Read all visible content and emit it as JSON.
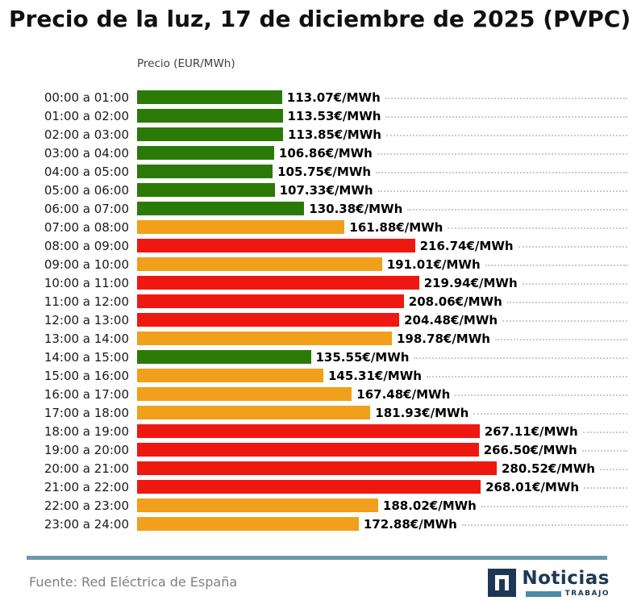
{
  "title": "Precio de la luz, 17 de diciembre de 2025 (PVPC)",
  "axis_title": "Precio (EUR/MWh)",
  "source": "Fuente: Red Eléctrica de España",
  "logo": {
    "name": "Noticias",
    "sub": "TRABAJO"
  },
  "colors": {
    "green": "#2b7a08",
    "orange": "#f0a01a",
    "red": "#ef1810",
    "divider": "#6a99ab"
  },
  "chart_data": {
    "type": "bar",
    "orientation": "horizontal",
    "title": "Precio de la luz, 17 de diciembre de 2025 (PVPC)",
    "xlabel": "Precio (EUR/MWh)",
    "ylabel": "",
    "xlim": [
      0,
      280.52
    ],
    "grid": "dotted-leader-lines",
    "rows": [
      {
        "hour": "00:00 a 01:00",
        "value": 113.07,
        "label": "113.07€/MWh",
        "level": "green"
      },
      {
        "hour": "01:00 a 02:00",
        "value": 113.53,
        "label": "113.53€/MWh",
        "level": "green"
      },
      {
        "hour": "02:00 a 03:00",
        "value": 113.85,
        "label": "113.85€/MWh",
        "level": "green"
      },
      {
        "hour": "03:00 a 04:00",
        "value": 106.86,
        "label": "106.86€/MWh",
        "level": "green"
      },
      {
        "hour": "04:00 a 05:00",
        "value": 105.75,
        "label": "105.75€/MWh",
        "level": "green"
      },
      {
        "hour": "05:00 a 06:00",
        "value": 107.33,
        "label": "107.33€/MWh",
        "level": "green"
      },
      {
        "hour": "06:00 a 07:00",
        "value": 130.38,
        "label": "130.38€/MWh",
        "level": "green"
      },
      {
        "hour": "07:00 a 08:00",
        "value": 161.88,
        "label": "161.88€/MWh",
        "level": "orange"
      },
      {
        "hour": "08:00 a 09:00",
        "value": 216.74,
        "label": "216.74€/MWh",
        "level": "red"
      },
      {
        "hour": "09:00 a 10:00",
        "value": 191.01,
        "label": "191.01€/MWh",
        "level": "orange"
      },
      {
        "hour": "10:00 a 11:00",
        "value": 219.94,
        "label": "219.94€/MWh",
        "level": "red"
      },
      {
        "hour": "11:00 a 12:00",
        "value": 208.06,
        "label": "208.06€/MWh",
        "level": "red"
      },
      {
        "hour": "12:00 a 13:00",
        "value": 204.48,
        "label": "204.48€/MWh",
        "level": "red"
      },
      {
        "hour": "13:00 a 14:00",
        "value": 198.78,
        "label": "198.78€/MWh",
        "level": "orange"
      },
      {
        "hour": "14:00 a 15:00",
        "value": 135.55,
        "label": "135.55€/MWh",
        "level": "green"
      },
      {
        "hour": "15:00 a 16:00",
        "value": 145.31,
        "label": "145.31€/MWh",
        "level": "orange"
      },
      {
        "hour": "16:00 a 17:00",
        "value": 167.48,
        "label": "167.48€/MWh",
        "level": "orange"
      },
      {
        "hour": "17:00 a 18:00",
        "value": 181.93,
        "label": "181.93€/MWh",
        "level": "orange"
      },
      {
        "hour": "18:00 a 19:00",
        "value": 267.11,
        "label": "267.11€/MWh",
        "level": "red"
      },
      {
        "hour": "19:00 a 20:00",
        "value": 266.5,
        "label": "266.50€/MWh",
        "level": "red"
      },
      {
        "hour": "20:00 a 21:00",
        "value": 280.52,
        "label": "280.52€/MWh",
        "level": "red"
      },
      {
        "hour": "21:00 a 22:00",
        "value": 268.01,
        "label": "268.01€/MWh",
        "level": "red"
      },
      {
        "hour": "22:00 a 23:00",
        "value": 188.02,
        "label": "188.02€/MWh",
        "level": "orange"
      },
      {
        "hour": "23:00 a 24:00",
        "value": 172.88,
        "label": "172.88€/MWh",
        "level": "orange"
      }
    ]
  }
}
